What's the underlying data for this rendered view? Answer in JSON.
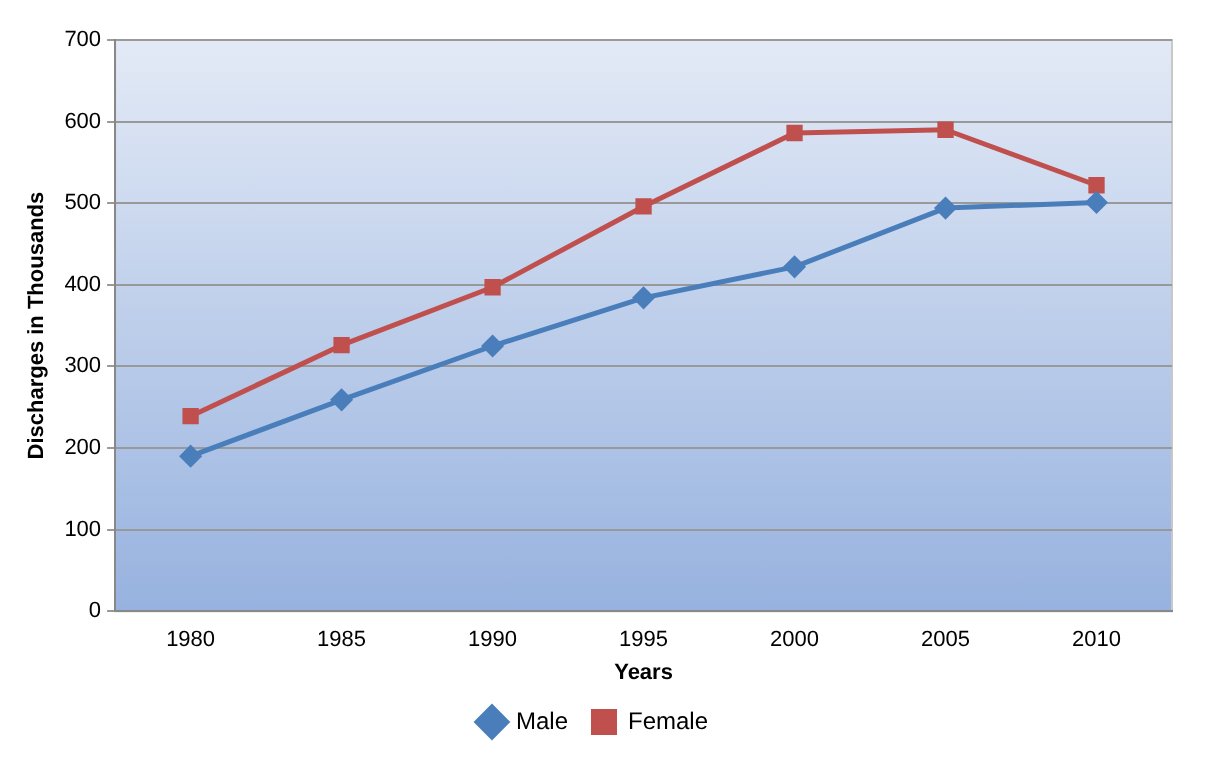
{
  "chart_data": {
    "type": "line",
    "xlabel": "Years",
    "ylabel": "Discharges in Thousands",
    "categories": [
      "1980",
      "1985",
      "1990",
      "1995",
      "2000",
      "2005",
      "2010"
    ],
    "series": [
      {
        "name": "Male",
        "color": "#4a7ebb",
        "marker": "diamond",
        "values": [
          190,
          259,
          325,
          384,
          422,
          494,
          501
        ]
      },
      {
        "name": "Female",
        "color": "#c0504d",
        "marker": "square",
        "values": [
          239,
          326,
          397,
          496,
          586,
          590,
          522
        ]
      }
    ],
    "ylim": [
      0,
      700
    ],
    "yticks": [
      0,
      100,
      200,
      300,
      400,
      500,
      600,
      700
    ],
    "grid": "y",
    "legend": "bottom",
    "line_style": "solid"
  }
}
